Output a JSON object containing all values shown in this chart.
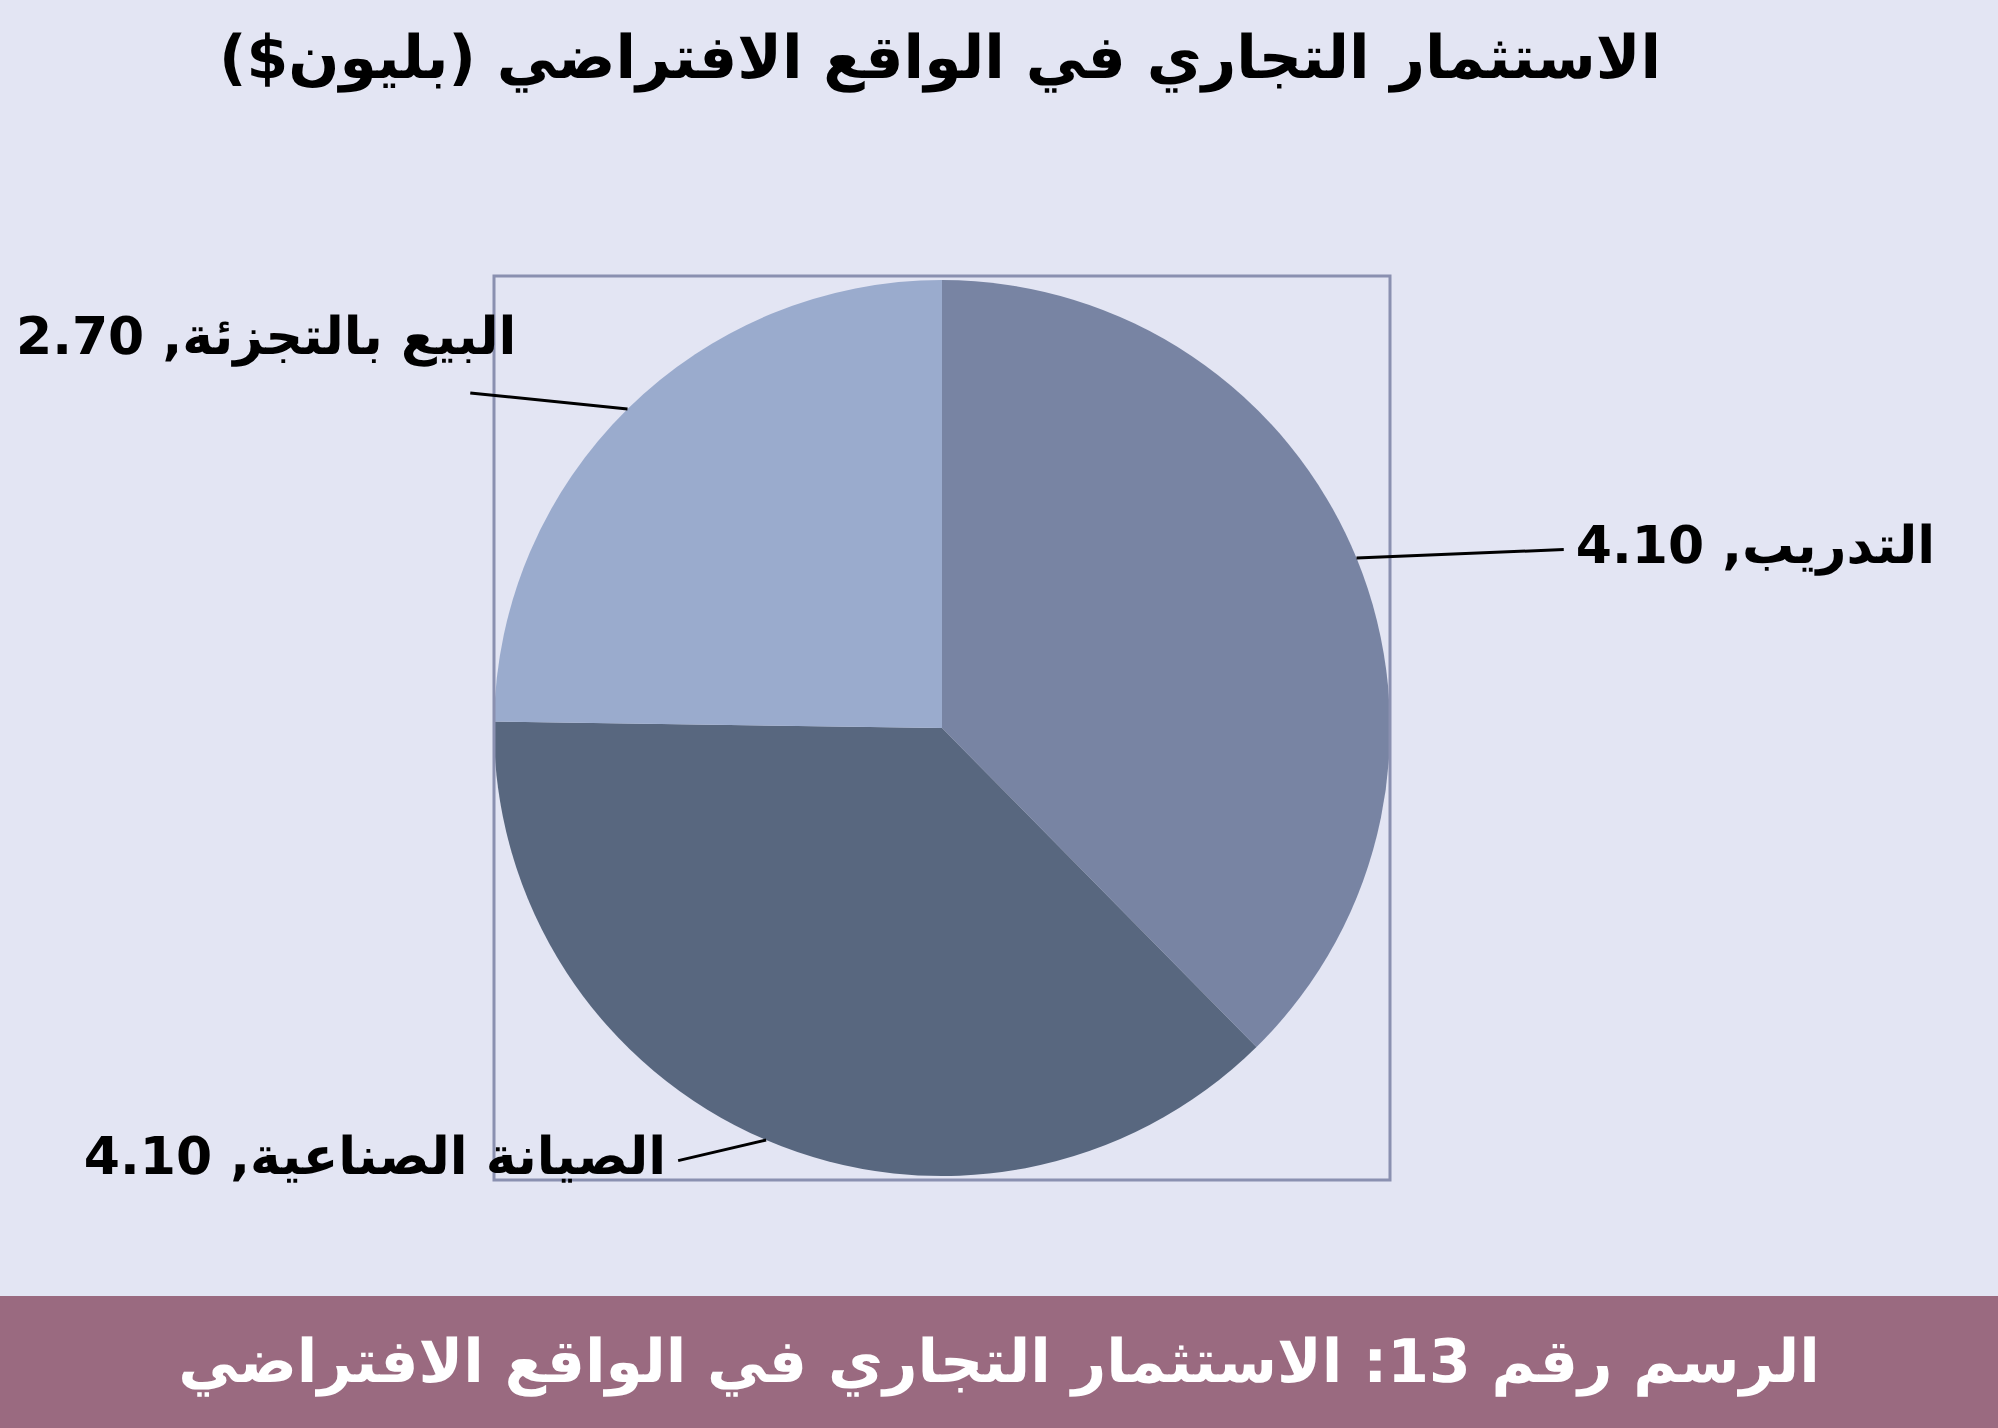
{
  "chart_data": {
    "type": "pie",
    "title": "الاستثمار التجاري في الواقع الافتراضي (بليون$)",
    "categories": [
      "التدريب",
      "الصيانة الصناعية",
      "البيع بالتجزئة"
    ],
    "values": [
      4.1,
      4.1,
      2.7
    ],
    "value_labels": [
      "4.10",
      "4.10",
      "2.70"
    ],
    "colors": [
      "#7884a3",
      "#58677f",
      "#9aabcd"
    ],
    "legend": false,
    "annotations": [
      "الرسم رقم 13: الاستثمار التجاري في الواقع الافتراضي"
    ]
  }
}
